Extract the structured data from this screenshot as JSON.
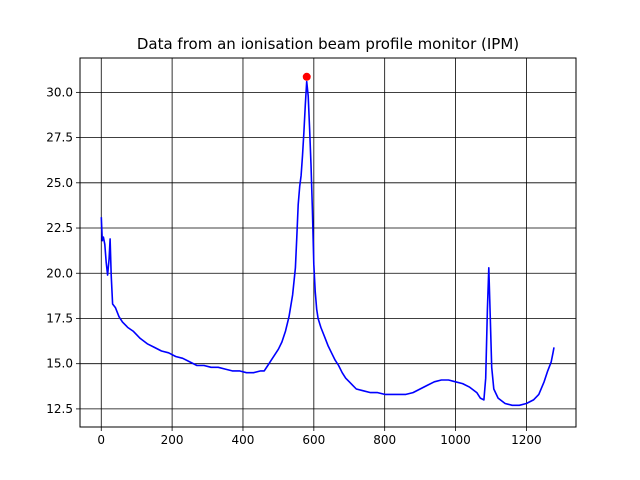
{
  "chart_data": {
    "type": "line",
    "title": "Data from an ionisation beam profile monitor (IPM)",
    "xlabel": "",
    "ylabel": "",
    "xlim": [
      -60,
      1340
    ],
    "ylim": [
      11.5,
      31.9
    ],
    "xticks": [
      0,
      200,
      400,
      600,
      800,
      1000,
      1200
    ],
    "yticks": [
      12.5,
      15.0,
      17.5,
      20.0,
      22.5,
      25.0,
      27.5,
      30.0
    ],
    "xtick_labels": [
      "0",
      "200",
      "400",
      "600",
      "800",
      "1000",
      "1200"
    ],
    "ytick_labels": [
      "12.5",
      "15.0",
      "17.5",
      "20.0",
      "22.5",
      "25.0",
      "27.5",
      "30.0"
    ],
    "grid": true,
    "series": [
      {
        "color": "#0000ff",
        "points": [
          [
            0,
            23.1
          ],
          [
            3,
            21.8
          ],
          [
            6,
            22.0
          ],
          [
            10,
            21.6
          ],
          [
            14,
            20.6
          ],
          [
            18,
            19.9
          ],
          [
            22,
            20.8
          ],
          [
            25,
            21.9
          ],
          [
            28,
            19.9
          ],
          [
            32,
            18.3
          ],
          [
            40,
            18.1
          ],
          [
            50,
            17.6
          ],
          [
            60,
            17.3
          ],
          [
            75,
            17.0
          ],
          [
            90,
            16.8
          ],
          [
            110,
            16.4
          ],
          [
            130,
            16.1
          ],
          [
            150,
            15.9
          ],
          [
            170,
            15.7
          ],
          [
            190,
            15.6
          ],
          [
            210,
            15.4
          ],
          [
            230,
            15.3
          ],
          [
            250,
            15.1
          ],
          [
            270,
            14.9
          ],
          [
            290,
            14.9
          ],
          [
            310,
            14.8
          ],
          [
            330,
            14.8
          ],
          [
            350,
            14.7
          ],
          [
            370,
            14.6
          ],
          [
            390,
            14.6
          ],
          [
            410,
            14.5
          ],
          [
            430,
            14.5
          ],
          [
            450,
            14.6
          ],
          [
            460,
            14.6
          ],
          [
            470,
            14.9
          ],
          [
            480,
            15.2
          ],
          [
            490,
            15.5
          ],
          [
            500,
            15.8
          ],
          [
            510,
            16.2
          ],
          [
            520,
            16.8
          ],
          [
            530,
            17.6
          ],
          [
            540,
            18.8
          ],
          [
            548,
            20.3
          ],
          [
            552,
            22.0
          ],
          [
            556,
            23.8
          ],
          [
            560,
            24.8
          ],
          [
            564,
            25.4
          ],
          [
            568,
            26.5
          ],
          [
            572,
            27.8
          ],
          [
            576,
            29.3
          ],
          [
            580,
            30.6
          ],
          [
            584,
            29.8
          ],
          [
            588,
            28.0
          ],
          [
            592,
            26.0
          ],
          [
            596,
            23.5
          ],
          [
            600,
            20.5
          ],
          [
            604,
            19.0
          ],
          [
            608,
            18.0
          ],
          [
            612,
            17.5
          ],
          [
            620,
            17.0
          ],
          [
            630,
            16.5
          ],
          [
            640,
            16.0
          ],
          [
            650,
            15.6
          ],
          [
            660,
            15.2
          ],
          [
            670,
            14.9
          ],
          [
            680,
            14.5
          ],
          [
            690,
            14.2
          ],
          [
            700,
            14.0
          ],
          [
            710,
            13.8
          ],
          [
            720,
            13.6
          ],
          [
            740,
            13.5
          ],
          [
            760,
            13.4
          ],
          [
            780,
            13.4
          ],
          [
            800,
            13.3
          ],
          [
            820,
            13.3
          ],
          [
            840,
            13.3
          ],
          [
            860,
            13.3
          ],
          [
            880,
            13.4
          ],
          [
            900,
            13.6
          ],
          [
            920,
            13.8
          ],
          [
            940,
            14.0
          ],
          [
            960,
            14.1
          ],
          [
            980,
            14.1
          ],
          [
            1000,
            14.0
          ],
          [
            1020,
            13.9
          ],
          [
            1040,
            13.7
          ],
          [
            1060,
            13.4
          ],
          [
            1070,
            13.1
          ],
          [
            1080,
            13.0
          ],
          [
            1085,
            14.2
          ],
          [
            1090,
            18.0
          ],
          [
            1094,
            20.3
          ],
          [
            1098,
            17.5
          ],
          [
            1102,
            14.8
          ],
          [
            1108,
            13.6
          ],
          [
            1120,
            13.1
          ],
          [
            1140,
            12.8
          ],
          [
            1160,
            12.7
          ],
          [
            1180,
            12.7
          ],
          [
            1200,
            12.8
          ],
          [
            1220,
            13.0
          ],
          [
            1235,
            13.3
          ],
          [
            1250,
            14.0
          ],
          [
            1260,
            14.6
          ],
          [
            1270,
            15.1
          ],
          [
            1275,
            15.6
          ],
          [
            1278,
            15.9
          ]
        ]
      }
    ],
    "marker": {
      "x": 580,
      "y": 30.86,
      "color": "#ff0000"
    }
  }
}
